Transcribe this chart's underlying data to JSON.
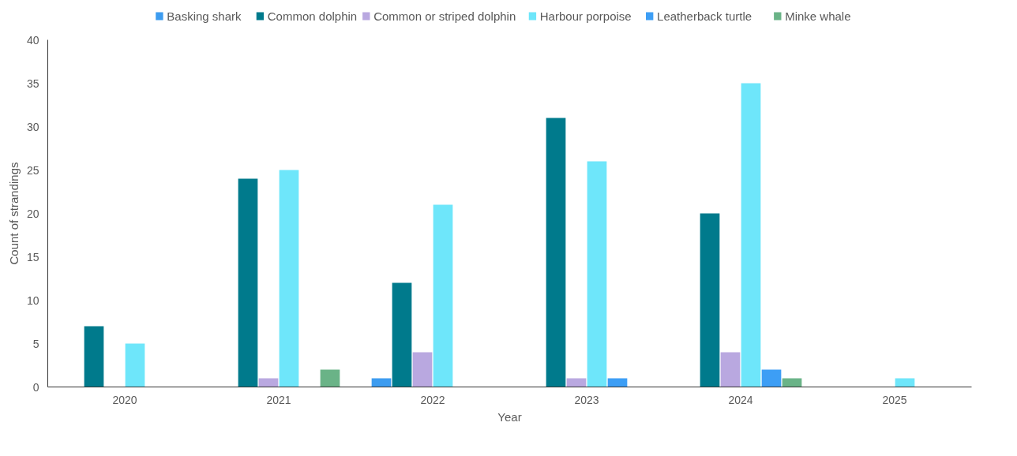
{
  "chart_data": {
    "type": "bar",
    "xlabel": "Year",
    "ylabel": "Count of strandings",
    "categories": [
      "2020",
      "2021",
      "2022",
      "2023",
      "2024",
      "2025"
    ],
    "series": [
      {
        "name": "Basking shark",
        "color": "#3d9cf0",
        "values": [
          null,
          null,
          1,
          null,
          null,
          null
        ]
      },
      {
        "name": "Common dolphin",
        "color": "#007a8c",
        "values": [
          7,
          24,
          12,
          31,
          20,
          null
        ]
      },
      {
        "name": "Common or striped dolphin",
        "color": "#b9a8e0",
        "values": [
          null,
          1,
          4,
          1,
          4,
          null
        ]
      },
      {
        "name": "Harbour porpoise",
        "color": "#6ee6fa",
        "values": [
          5,
          25,
          21,
          26,
          35,
          1
        ]
      },
      {
        "name": "Leatherback turtle",
        "color": "#3d9ef5",
        "values": [
          null,
          null,
          null,
          1,
          2,
          null
        ]
      },
      {
        "name": "Minke whale",
        "color": "#6ab387",
        "values": [
          null,
          2,
          null,
          null,
          1,
          null
        ]
      }
    ],
    "ylim": [
      0,
      40
    ],
    "yticks": [
      0,
      5,
      10,
      15,
      20,
      25,
      30,
      35,
      40
    ],
    "grid": false,
    "legend": "top"
  }
}
